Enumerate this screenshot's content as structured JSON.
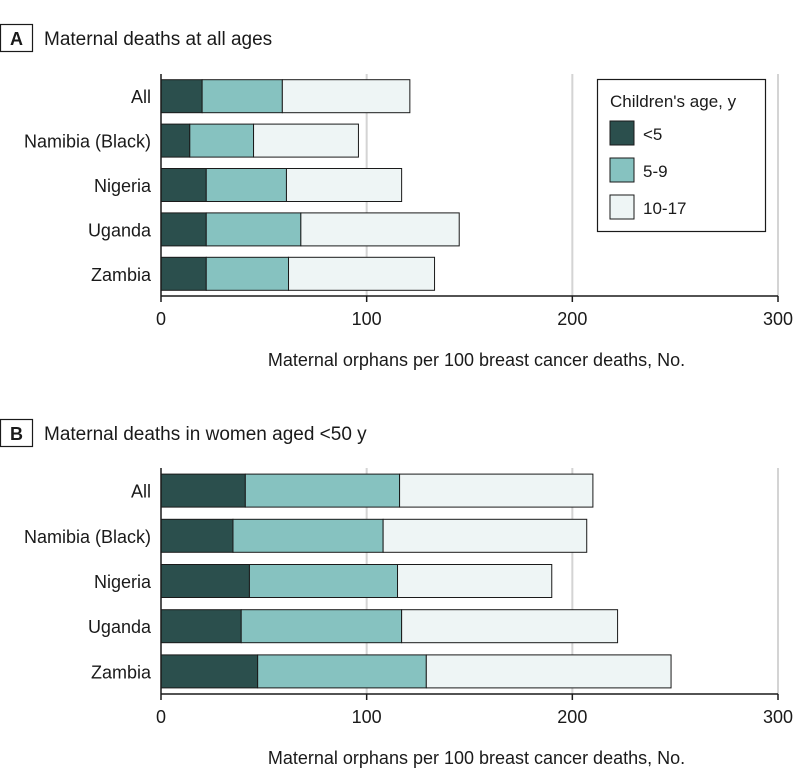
{
  "colors": {
    "under5": "#2b4f4d",
    "age5to9": "#86c2c0",
    "age10to17": "#eef5f5",
    "grid": "#d4d4d4",
    "axis": "#1a1a1a",
    "bar_stroke": "#1a1a1a"
  },
  "legend": {
    "title": "Children's age, y",
    "items": [
      "<5",
      "5-9",
      "10-17"
    ]
  },
  "chart_data": [
    {
      "type": "bar",
      "orientation": "horizontal",
      "stacked": true,
      "panel_letter": "A",
      "title": "Maternal deaths at all ages",
      "xlabel": "Maternal orphans per 100 breast cancer deaths, No.",
      "ylabel": "",
      "xlim": [
        0,
        300
      ],
      "xticks": [
        "0",
        "100",
        "200",
        "300"
      ],
      "grid": true,
      "legend_position": "top-right",
      "categories": [
        "All",
        "Namibia (Black)",
        "Nigeria",
        "Uganda",
        "Zambia"
      ],
      "series": [
        {
          "name": "<5",
          "values": [
            20,
            14,
            22,
            22,
            22
          ]
        },
        {
          "name": "5-9",
          "values": [
            39,
            31,
            39,
            46,
            40
          ]
        },
        {
          "name": "10-17",
          "values": [
            62,
            51,
            56,
            77,
            71
          ]
        }
      ]
    },
    {
      "type": "bar",
      "orientation": "horizontal",
      "stacked": true,
      "panel_letter": "B",
      "title": "Maternal deaths in women aged <50 y",
      "xlabel": "Maternal orphans per 100 breast cancer deaths, No.",
      "ylabel": "",
      "xlim": [
        0,
        300
      ],
      "xticks": [
        "0",
        "100",
        "200",
        "300"
      ],
      "grid": true,
      "legend_position": "none",
      "categories": [
        "All",
        "Namibia (Black)",
        "Nigeria",
        "Uganda",
        "Zambia"
      ],
      "series": [
        {
          "name": "<5",
          "values": [
            41,
            35,
            43,
            39,
            47
          ]
        },
        {
          "name": "5-9",
          "values": [
            75,
            73,
            72,
            78,
            82
          ]
        },
        {
          "name": "10-17",
          "values": [
            94,
            99,
            75,
            105,
            119
          ]
        }
      ]
    }
  ]
}
